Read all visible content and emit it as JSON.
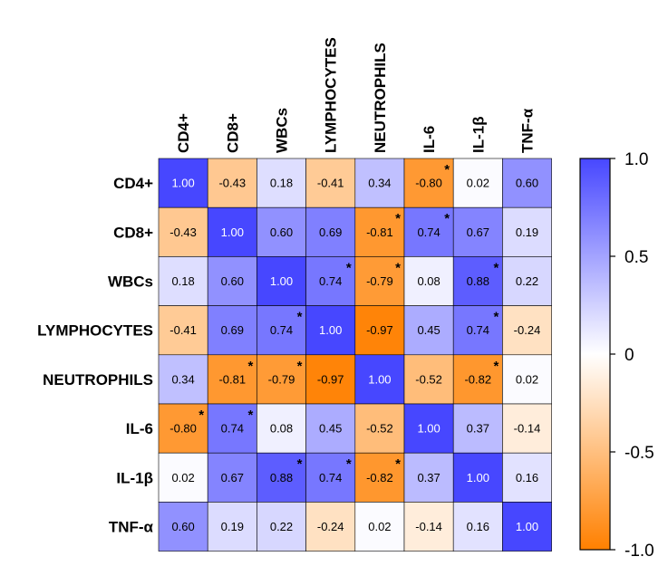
{
  "chart_data": {
    "type": "heatmap",
    "labels": [
      "CD4+",
      "CD8+",
      "WBCs",
      "LYMPHOCYTES",
      "NEUTROPHILS",
      "IL-6",
      "IL-1β",
      "TNF-α"
    ],
    "values": [
      [
        1.0,
        -0.43,
        0.18,
        -0.41,
        0.34,
        -0.8,
        0.02,
        0.6
      ],
      [
        -0.43,
        1.0,
        0.6,
        0.69,
        -0.81,
        0.74,
        0.67,
        0.19
      ],
      [
        0.18,
        0.6,
        1.0,
        0.74,
        -0.79,
        0.08,
        0.88,
        0.22
      ],
      [
        -0.41,
        0.69,
        0.74,
        1.0,
        -0.97,
        0.45,
        0.74,
        -0.24
      ],
      [
        0.34,
        -0.81,
        -0.79,
        -0.97,
        1.0,
        -0.52,
        -0.82,
        0.02
      ],
      [
        -0.8,
        0.74,
        0.08,
        0.45,
        -0.52,
        1.0,
        0.37,
        -0.14
      ],
      [
        0.02,
        0.67,
        0.88,
        0.74,
        -0.82,
        0.37,
        1.0,
        0.16
      ],
      [
        0.6,
        0.19,
        0.22,
        -0.24,
        0.02,
        -0.14,
        0.16,
        1.0
      ]
    ],
    "cell_text": [
      [
        "1.00",
        "-0.43",
        "0.18",
        "-0.41",
        "0.34",
        "-0.80",
        "0.02",
        "0.60"
      ],
      [
        "-0.43",
        "1.00",
        "0.60",
        "0.69",
        "-0.81",
        "0.74",
        "0.67",
        "0.19"
      ],
      [
        "0.18",
        "0.60",
        "1.00",
        "0.74",
        "-0.79",
        "0.08",
        "0.88",
        "0.22"
      ],
      [
        "-0.41",
        "0.69",
        "0.74",
        "1.00",
        "-0.97",
        "0.45",
        "0.74",
        "-0.24"
      ],
      [
        "0.34",
        "-0.81",
        "-0.79",
        "-0.97",
        "1.00",
        "-0.52",
        "-0.82",
        "0.02"
      ],
      [
        "-0.80",
        "0.74",
        "0.08",
        "0.45",
        "-0.52",
        "1.00",
        "0.37",
        "-0.14"
      ],
      [
        "0.02",
        "0.67",
        "0.88",
        "0.74",
        "-0.82",
        "0.37",
        "1.00",
        "0.16"
      ],
      [
        "0.60",
        "0.19",
        "0.22",
        "-0.24",
        "0.02",
        "-0.14",
        "0.16",
        "1.00"
      ]
    ],
    "significant": [
      [
        false,
        false,
        false,
        false,
        false,
        true,
        false,
        false
      ],
      [
        false,
        false,
        false,
        false,
        true,
        true,
        false,
        false
      ],
      [
        false,
        false,
        false,
        true,
        true,
        false,
        true,
        false
      ],
      [
        false,
        false,
        true,
        false,
        false,
        false,
        true,
        false
      ],
      [
        false,
        true,
        true,
        false,
        false,
        false,
        true,
        false
      ],
      [
        true,
        true,
        false,
        false,
        false,
        false,
        false,
        false
      ],
      [
        false,
        false,
        true,
        true,
        true,
        false,
        false,
        false
      ],
      [
        false,
        false,
        false,
        false,
        false,
        false,
        false,
        false
      ]
    ],
    "significance_marker": "*",
    "colorbar": {
      "min": -1.0,
      "max": 1.0,
      "ticks": [
        1.0,
        0.5,
        0,
        -0.5,
        -1.0
      ],
      "tick_labels": [
        "1.0",
        "0.5",
        "0",
        "-0.5",
        "-1.0"
      ],
      "colors": {
        "high": "#4747ff",
        "mid": "#ffffff",
        "low": "#ff8000"
      }
    }
  }
}
